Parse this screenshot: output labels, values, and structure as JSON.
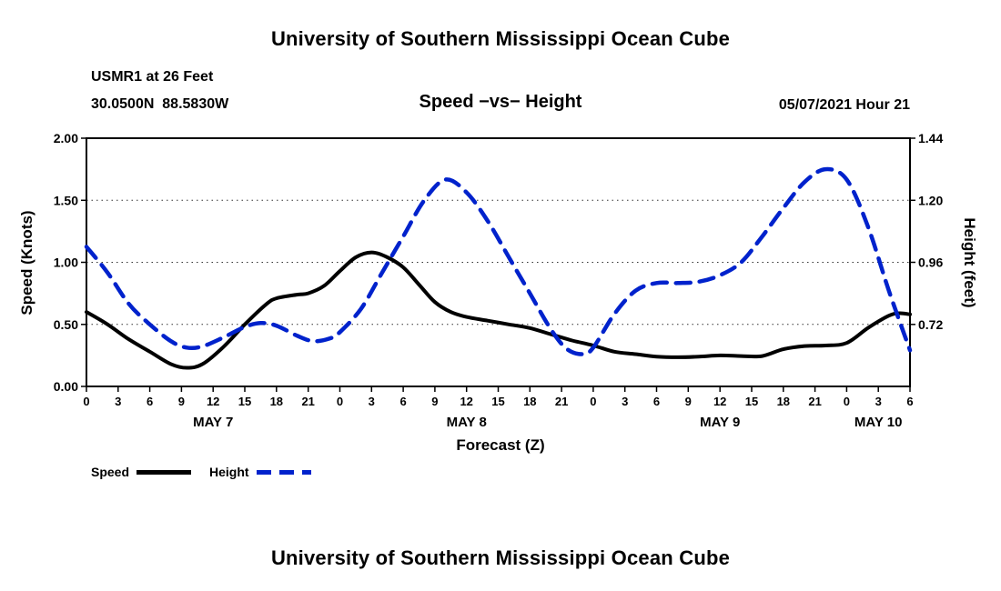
{
  "page": {
    "top_title": "University of Southern Mississippi Ocean Cube",
    "bottom_title": "University of Southern Mississippi Ocean Cube"
  },
  "header": {
    "station": "USMR1 at 26 Feet",
    "coordinates": "30.0500N  88.5830W",
    "chart_title": "Speed −vs− Height",
    "datetime": "05/07/2021 Hour 21"
  },
  "legend": {
    "speed_label": "Speed",
    "height_label": "Height"
  },
  "chart_data": {
    "type": "line",
    "title": "Speed −vs− Height",
    "xlabel": "Forecast (Z)",
    "ylabel_left": "Speed (Knots)",
    "ylabel_right": "Height (feet)",
    "x_range": [
      0,
      78
    ],
    "x_ticks_hours": [
      0,
      3,
      6,
      9,
      12,
      15,
      18,
      21,
      24,
      27,
      30,
      33,
      36,
      39,
      42,
      45,
      48,
      51,
      54,
      57,
      60,
      63,
      66,
      69,
      72,
      75,
      78
    ],
    "x_tick_labels": [
      "0",
      "3",
      "6",
      "9",
      "12",
      "15",
      "18",
      "21",
      "0",
      "3",
      "6",
      "9",
      "12",
      "15",
      "18",
      "21",
      "0",
      "3",
      "6",
      "9",
      "12",
      "15",
      "18",
      "21",
      "0",
      "3",
      "6"
    ],
    "day_labels": [
      {
        "label": "MAY 7",
        "hour": 12
      },
      {
        "label": "MAY 8",
        "hour": 36
      },
      {
        "label": "MAY 9",
        "hour": 60
      },
      {
        "label": "MAY 10",
        "hour": 75
      }
    ],
    "y_left": {
      "min": 0.0,
      "max": 2.0,
      "ticks": [
        {
          "value": 2.0,
          "label": "2.00"
        },
        {
          "value": 1.5,
          "label": "1.50"
        },
        {
          "value": 1.0,
          "label": "1.00"
        },
        {
          "value": 0.5,
          "label": "0.50"
        },
        {
          "value": 0.0,
          "label": "0.00"
        }
      ],
      "gridlines": [
        0.5,
        1.0,
        1.5
      ]
    },
    "y_right": {
      "min": 0.48,
      "max": 1.44,
      "ticks": [
        {
          "value": 1.44,
          "label": "1.44"
        },
        {
          "value": 1.2,
          "label": "1.20"
        },
        {
          "value": 0.96,
          "label": "0.96"
        },
        {
          "value": 0.72,
          "label": "0.72"
        }
      ]
    },
    "grid": "horizontal-dotted",
    "legend_position": "bottom-left",
    "series": [
      {
        "name": "Speed",
        "axis": "left",
        "color": "#000000",
        "style": "solid",
        "points": [
          [
            0,
            0.6
          ],
          [
            2,
            0.5
          ],
          [
            4,
            0.38
          ],
          [
            6,
            0.28
          ],
          [
            8,
            0.18
          ],
          [
            9.5,
            0.15
          ],
          [
            11,
            0.18
          ],
          [
            13,
            0.32
          ],
          [
            15,
            0.5
          ],
          [
            17,
            0.66
          ],
          [
            18,
            0.71
          ],
          [
            20,
            0.74
          ],
          [
            21,
            0.75
          ],
          [
            22.5,
            0.81
          ],
          [
            24,
            0.93
          ],
          [
            25.5,
            1.04
          ],
          [
            27,
            1.08
          ],
          [
            28.5,
            1.04
          ],
          [
            30,
            0.96
          ],
          [
            31.5,
            0.82
          ],
          [
            33,
            0.68
          ],
          [
            34.5,
            0.6
          ],
          [
            36,
            0.56
          ],
          [
            38,
            0.53
          ],
          [
            40,
            0.5
          ],
          [
            42,
            0.47
          ],
          [
            44,
            0.42
          ],
          [
            46,
            0.37
          ],
          [
            48,
            0.33
          ],
          [
            50,
            0.28
          ],
          [
            52,
            0.26
          ],
          [
            54,
            0.24
          ],
          [
            56,
            0.235
          ],
          [
            58,
            0.24
          ],
          [
            60,
            0.25
          ],
          [
            62,
            0.245
          ],
          [
            64,
            0.245
          ],
          [
            66,
            0.3
          ],
          [
            68,
            0.325
          ],
          [
            70,
            0.33
          ],
          [
            72,
            0.35
          ],
          [
            74,
            0.47
          ],
          [
            76,
            0.57
          ],
          [
            77,
            0.59
          ],
          [
            78,
            0.58
          ]
        ]
      },
      {
        "name": "Height",
        "axis": "right",
        "color": "#0022cc",
        "style": "dashed",
        "points": [
          [
            0,
            1.02
          ],
          [
            2,
            0.92
          ],
          [
            4,
            0.8
          ],
          [
            6,
            0.72
          ],
          [
            8,
            0.655
          ],
          [
            9.5,
            0.63
          ],
          [
            11,
            0.635
          ],
          [
            13,
            0.67
          ],
          [
            15,
            0.71
          ],
          [
            16.5,
            0.725
          ],
          [
            18,
            0.715
          ],
          [
            20,
            0.675
          ],
          [
            21.5,
            0.655
          ],
          [
            23,
            0.665
          ],
          [
            24,
            0.69
          ],
          [
            26,
            0.78
          ],
          [
            28,
            0.92
          ],
          [
            30,
            1.06
          ],
          [
            32,
            1.2
          ],
          [
            34,
            1.28
          ],
          [
            36,
            1.23
          ],
          [
            38,
            1.12
          ],
          [
            40,
            0.98
          ],
          [
            42,
            0.84
          ],
          [
            44,
            0.7
          ],
          [
            45.5,
            0.625
          ],
          [
            47,
            0.605
          ],
          [
            48,
            0.63
          ],
          [
            50,
            0.76
          ],
          [
            52,
            0.85
          ],
          [
            54,
            0.88
          ],
          [
            56,
            0.88
          ],
          [
            58,
            0.885
          ],
          [
            60,
            0.91
          ],
          [
            62,
            0.96
          ],
          [
            64,
            1.06
          ],
          [
            66,
            1.17
          ],
          [
            68,
            1.27
          ],
          [
            70,
            1.32
          ],
          [
            72,
            1.28
          ],
          [
            74,
            1.1
          ],
          [
            76,
            0.85
          ],
          [
            78,
            0.62
          ]
        ]
      }
    ]
  }
}
